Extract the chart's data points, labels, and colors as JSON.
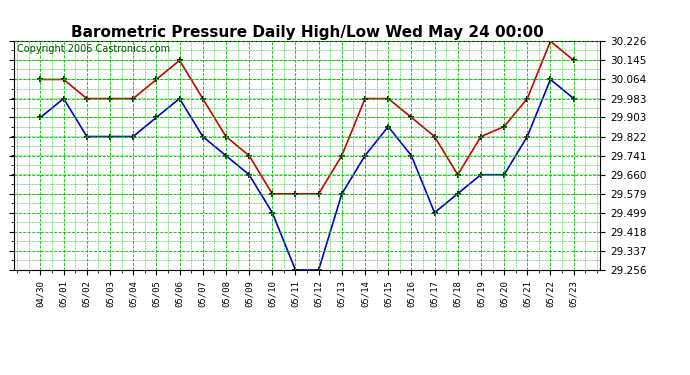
{
  "title": "Barometric Pressure Daily High/Low Wed May 24 00:00",
  "copyright": "Copyright 2006 Castronics.com",
  "x_labels": [
    "04/30",
    "05/01",
    "05/02",
    "05/03",
    "05/04",
    "05/05",
    "05/06",
    "05/07",
    "05/08",
    "05/09",
    "05/10",
    "05/11",
    "05/12",
    "05/13",
    "05/14",
    "05/15",
    "05/16",
    "05/17",
    "05/18",
    "05/19",
    "05/20",
    "05/21",
    "05/22",
    "05/23"
  ],
  "high_values": [
    30.064,
    30.064,
    29.983,
    29.983,
    29.983,
    30.064,
    30.145,
    29.983,
    29.822,
    29.741,
    29.579,
    29.579,
    29.579,
    29.741,
    29.983,
    29.983,
    29.903,
    29.822,
    29.66,
    29.822,
    29.864,
    29.983,
    30.226,
    30.145
  ],
  "low_values": [
    29.903,
    29.983,
    29.822,
    29.822,
    29.822,
    29.903,
    29.983,
    29.822,
    29.741,
    29.66,
    29.499,
    29.256,
    29.256,
    29.579,
    29.741,
    29.864,
    29.741,
    29.499,
    29.58,
    29.66,
    29.66,
    29.822,
    30.064,
    29.983
  ],
  "high_color": "#cc0000",
  "low_color": "#0000cc",
  "bg_color": "#ffffff",
  "grid_color": "#00bb00",
  "y_ticks": [
    29.256,
    29.337,
    29.418,
    29.499,
    29.579,
    29.66,
    29.741,
    29.822,
    29.903,
    29.983,
    30.064,
    30.145,
    30.226
  ],
  "y_min": 29.256,
  "y_max": 30.226,
  "title_fontsize": 11,
  "copyright_fontsize": 7
}
